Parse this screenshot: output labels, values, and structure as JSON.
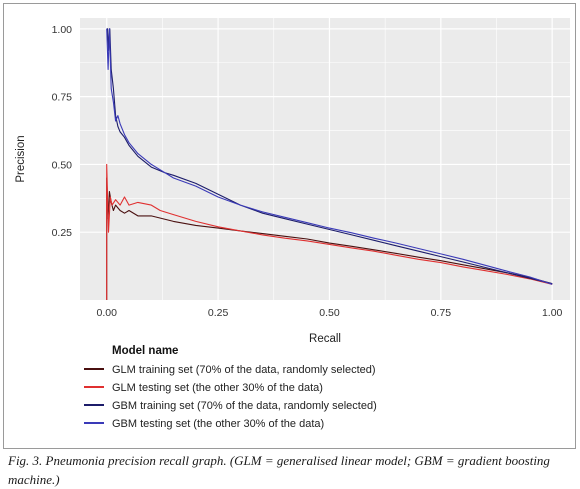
{
  "chart_data": {
    "type": "line",
    "title": "",
    "xlabel": "Recall",
    "ylabel": "Precision",
    "xlim": [
      -0.06,
      1.04
    ],
    "ylim": [
      0.0,
      1.04
    ],
    "xticks": [
      "0.00",
      "0.25",
      "0.50",
      "0.75",
      "1.00"
    ],
    "yticks": [
      "0.25",
      "0.50",
      "0.75",
      "1.00"
    ],
    "grid": true,
    "legend_title": "Model name",
    "legend_position": "bottom-left",
    "series": [
      {
        "name": "GLM training set (70% of the data, randomly selected)",
        "color": "#4a1010",
        "points": [
          [
            0.0,
            0.0
          ],
          [
            0.0,
            0.45
          ],
          [
            0.003,
            0.3
          ],
          [
            0.006,
            0.4
          ],
          [
            0.01,
            0.36
          ],
          [
            0.015,
            0.33
          ],
          [
            0.02,
            0.35
          ],
          [
            0.03,
            0.33
          ],
          [
            0.04,
            0.32
          ],
          [
            0.05,
            0.33
          ],
          [
            0.07,
            0.31
          ],
          [
            0.1,
            0.31
          ],
          [
            0.15,
            0.29
          ],
          [
            0.2,
            0.275
          ],
          [
            0.25,
            0.265
          ],
          [
            0.3,
            0.255
          ],
          [
            0.35,
            0.245
          ],
          [
            0.4,
            0.235
          ],
          [
            0.45,
            0.225
          ],
          [
            0.5,
            0.21
          ],
          [
            0.55,
            0.198
          ],
          [
            0.6,
            0.185
          ],
          [
            0.65,
            0.172
          ],
          [
            0.7,
            0.158
          ],
          [
            0.75,
            0.145
          ],
          [
            0.8,
            0.13
          ],
          [
            0.85,
            0.115
          ],
          [
            0.9,
            0.1
          ],
          [
            0.95,
            0.083
          ],
          [
            1.0,
            0.06
          ]
        ]
      },
      {
        "name": "GLM testing set (the other 30% of the data)",
        "color": "#e03030",
        "points": [
          [
            0.0,
            0.0
          ],
          [
            0.0,
            0.5
          ],
          [
            0.004,
            0.25
          ],
          [
            0.008,
            0.38
          ],
          [
            0.012,
            0.35
          ],
          [
            0.02,
            0.37
          ],
          [
            0.03,
            0.35
          ],
          [
            0.04,
            0.38
          ],
          [
            0.05,
            0.35
          ],
          [
            0.07,
            0.36
          ],
          [
            0.1,
            0.35
          ],
          [
            0.12,
            0.33
          ],
          [
            0.15,
            0.315
          ],
          [
            0.2,
            0.29
          ],
          [
            0.25,
            0.27
          ],
          [
            0.3,
            0.255
          ],
          [
            0.35,
            0.24
          ],
          [
            0.4,
            0.228
          ],
          [
            0.45,
            0.218
          ],
          [
            0.5,
            0.205
          ],
          [
            0.55,
            0.192
          ],
          [
            0.6,
            0.18
          ],
          [
            0.65,
            0.165
          ],
          [
            0.7,
            0.15
          ],
          [
            0.75,
            0.138
          ],
          [
            0.8,
            0.122
          ],
          [
            0.85,
            0.108
          ],
          [
            0.9,
            0.094
          ],
          [
            0.95,
            0.078
          ],
          [
            1.0,
            0.058
          ]
        ]
      },
      {
        "name": "GBM training set (70% of the data, randomly selected)",
        "color": "#1c1c6a",
        "points": [
          [
            0.0,
            1.0
          ],
          [
            0.002,
            1.0
          ],
          [
            0.004,
            0.92
          ],
          [
            0.007,
            1.0
          ],
          [
            0.01,
            0.85
          ],
          [
            0.015,
            0.78
          ],
          [
            0.02,
            0.68
          ],
          [
            0.025,
            0.64
          ],
          [
            0.03,
            0.62
          ],
          [
            0.04,
            0.6
          ],
          [
            0.05,
            0.57
          ],
          [
            0.07,
            0.53
          ],
          [
            0.1,
            0.49
          ],
          [
            0.13,
            0.47
          ],
          [
            0.15,
            0.46
          ],
          [
            0.2,
            0.43
          ],
          [
            0.25,
            0.39
          ],
          [
            0.3,
            0.35
          ],
          [
            0.35,
            0.32
          ],
          [
            0.4,
            0.3
          ],
          [
            0.45,
            0.28
          ],
          [
            0.5,
            0.26
          ],
          [
            0.55,
            0.24
          ],
          [
            0.6,
            0.22
          ],
          [
            0.65,
            0.2
          ],
          [
            0.7,
            0.18
          ],
          [
            0.75,
            0.16
          ],
          [
            0.8,
            0.14
          ],
          [
            0.85,
            0.12
          ],
          [
            0.9,
            0.1
          ],
          [
            0.95,
            0.08
          ],
          [
            1.0,
            0.06
          ]
        ]
      },
      {
        "name": "GBM testing set (the other 30% of the data)",
        "color": "#3a3ab8",
        "points": [
          [
            0.0,
            1.0
          ],
          [
            0.003,
            0.85
          ],
          [
            0.006,
            1.0
          ],
          [
            0.01,
            0.78
          ],
          [
            0.015,
            0.73
          ],
          [
            0.02,
            0.66
          ],
          [
            0.025,
            0.68
          ],
          [
            0.03,
            0.65
          ],
          [
            0.04,
            0.61
          ],
          [
            0.05,
            0.58
          ],
          [
            0.07,
            0.54
          ],
          [
            0.1,
            0.5
          ],
          [
            0.12,
            0.48
          ],
          [
            0.15,
            0.45
          ],
          [
            0.2,
            0.42
          ],
          [
            0.25,
            0.38
          ],
          [
            0.3,
            0.35
          ],
          [
            0.35,
            0.325
          ],
          [
            0.4,
            0.305
          ],
          [
            0.45,
            0.285
          ],
          [
            0.5,
            0.265
          ],
          [
            0.55,
            0.248
          ],
          [
            0.6,
            0.228
          ],
          [
            0.65,
            0.21
          ],
          [
            0.7,
            0.19
          ],
          [
            0.75,
            0.17
          ],
          [
            0.8,
            0.15
          ],
          [
            0.85,
            0.128
          ],
          [
            0.9,
            0.106
          ],
          [
            0.95,
            0.085
          ],
          [
            1.0,
            0.058
          ]
        ]
      }
    ]
  },
  "caption": "Fig. 3. Pneumonia precision recall graph. (GLM = generalised linear model; GBM = gradient boosting machine.)"
}
